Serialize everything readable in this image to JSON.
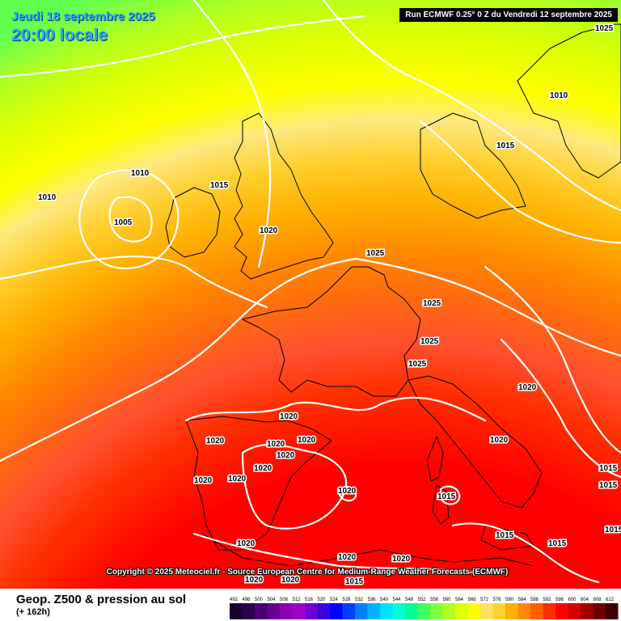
{
  "header": {
    "valid_date": "Jeudi 18 septembre 2025",
    "local_time": "20:00 locale",
    "run_info": "Run ECMWF 0.25° 0 Z du Vendredi 12 septembre 2025"
  },
  "copyright": "Copyright © 2025 Meteociel.fr - Source European Centre for Medium-Range Weather Forecasts (ECMWF)",
  "footer": {
    "parameter": "Geop. Z500 & pression au sol",
    "lead_time": "(+ 162h)"
  },
  "legend": {
    "values": [
      "492",
      "496",
      "500",
      "504",
      "508",
      "512",
      "516",
      "520",
      "524",
      "528",
      "532",
      "536",
      "540",
      "544",
      "548",
      "552",
      "556",
      "560",
      "564",
      "568",
      "572",
      "576",
      "580",
      "584",
      "588",
      "592",
      "596",
      "600",
      "604",
      "608",
      "612"
    ],
    "colors": [
      "#1a0030",
      "#2c0050",
      "#4a0070",
      "#6a0090",
      "#8a00b0",
      "#a000c8",
      "#7000d0",
      "#3a00e0",
      "#0000ff",
      "#0040ff",
      "#0080ff",
      "#00b0ff",
      "#00e0ff",
      "#00ffd0",
      "#00ff90",
      "#40ff60",
      "#80ff40",
      "#b0ff20",
      "#e0ff00",
      "#ffff00",
      "#ffe060",
      "#ffd030",
      "#ffb000",
      "#ff8a00",
      "#ff6000",
      "#ff3000",
      "#ff0000",
      "#d40000",
      "#a00000",
      "#700000",
      "#400000"
    ]
  },
  "isobar_labels": [
    {
      "text": "1025"
    },
    {
      "text": "1010"
    },
    {
      "text": "1015"
    },
    {
      "text": "1010"
    },
    {
      "text": "1010"
    },
    {
      "text": "1005"
    },
    {
      "text": "1015"
    },
    {
      "text": "1020"
    },
    {
      "text": "1025"
    },
    {
      "text": "1025"
    },
    {
      "text": "1025"
    },
    {
      "text": "1025"
    },
    {
      "text": "1020"
    },
    {
      "text": "1020"
    },
    {
      "text": "1020"
    },
    {
      "text": "1020"
    },
    {
      "text": "1020"
    },
    {
      "text": "1020"
    },
    {
      "text": "1020"
    },
    {
      "text": "1020"
    },
    {
      "text": "1020"
    },
    {
      "text": "1015"
    },
    {
      "text": "1020"
    },
    {
      "text": "1015"
    },
    {
      "text": "1015"
    },
    {
      "text": "1015"
    },
    {
      "text": "1015"
    },
    {
      "text": "1020"
    },
    {
      "text": "1020"
    },
    {
      "text": "1020"
    },
    {
      "text": "1020"
    },
    {
      "text": "1020"
    },
    {
      "text": "1020"
    },
    {
      "text": "1015"
    },
    {
      "text": "1015"
    }
  ]
}
